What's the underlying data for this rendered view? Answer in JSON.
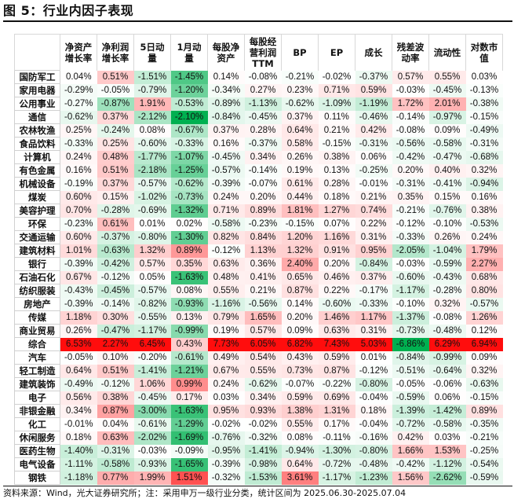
{
  "title": "图 5：行业内因子表现",
  "footer": "资料来源：Wind，光大证券研究所；注：采用申万一级行业分类，统计区间为 2025.06.30-2025.07.04",
  "chart_data": {
    "type": "heatmap",
    "colors": {
      "positive": "#ff0000",
      "negative": "#00b050",
      "neutral": "#ffffff"
    },
    "columns": [
      "净资产\n增长率",
      "净利润\n增长率",
      "5日动\n量",
      "1月动\n量",
      "每股净\n资产",
      "每股经\n营利润\nTTM",
      "BP",
      "EP",
      "成长",
      "残差波\n动率",
      "流动性",
      "对数市\n值"
    ],
    "unit": "%",
    "rows": [
      {
        "name": "国防军工",
        "values": [
          0.04,
          0.51,
          -1.51,
          -1.45,
          0.14,
          -0.08,
          -0.21,
          -0.02,
          -0.37,
          0.57,
          0.55,
          0.03
        ]
      },
      {
        "name": "家用电器",
        "values": [
          -0.29,
          -0.05,
          -0.79,
          -1.2,
          -0.34,
          0.27,
          0.23,
          0.71,
          0.59,
          -0.03,
          -0.45,
          -0.13
        ]
      },
      {
        "name": "公用事业",
        "values": [
          -0.27,
          -0.87,
          1.91,
          -0.53,
          -0.89,
          -1.13,
          -0.62,
          -1.09,
          -1.19,
          1.72,
          2.01,
          -0.38
        ]
      },
      {
        "name": "通信",
        "values": [
          -0.62,
          0.37,
          -2.12,
          -2.1,
          -0.84,
          -0.45,
          0.37,
          0.11,
          -0.46,
          -0.14,
          -0.97,
          -0.15
        ]
      },
      {
        "name": "农林牧渔",
        "values": [
          0.25,
          -0.24,
          0.08,
          -0.67,
          0.37,
          0.28,
          0.64,
          0.21,
          0.42,
          -0.08,
          0.09,
          -0.49
        ]
      },
      {
        "name": "食品饮料",
        "values": [
          -0.33,
          0.25,
          -0.6,
          -0.33,
          0.16,
          -0.37,
          0.58,
          -0.15,
          -0.31,
          -0.56,
          -0.58,
          -0.31
        ]
      },
      {
        "name": "计算机",
        "values": [
          0.24,
          0.48,
          -1.77,
          -1.07,
          -0.45,
          0.34,
          0.26,
          0.38,
          0.06,
          -0.42,
          -0.47,
          -0.68
        ]
      },
      {
        "name": "有色金属",
        "values": [
          0.16,
          0.51,
          -2.18,
          -1.25,
          -0.57,
          -0.14,
          0.19,
          0.13,
          -0.25,
          0.2,
          0.4,
          0.32
        ]
      },
      {
        "name": "机械设备",
        "values": [
          -0.19,
          0.37,
          -0.57,
          -0.62,
          -0.39,
          -0.07,
          0.61,
          0.28,
          -0.01,
          -0.31,
          -0.41,
          -0.94
        ]
      },
      {
        "name": "煤炭",
        "values": [
          0.6,
          0.15,
          -1.02,
          -0.73,
          0.24,
          0.2,
          0.44,
          0.18,
          0.21,
          0.35,
          0.15,
          0.16
        ]
      },
      {
        "name": "美容护理",
        "values": [
          0.7,
          -0.28,
          -0.69,
          -1.32,
          0.71,
          0.89,
          1.81,
          1.27,
          0.74,
          -0.21,
          -0.76,
          0.38
        ]
      },
      {
        "name": "环保",
        "values": [
          -0.23,
          0.61,
          0.01,
          0.02,
          -0.58,
          -0.23,
          -0.15,
          0.07,
          0.22,
          -0.12,
          -0.1,
          -0.53
        ]
      },
      {
        "name": "交通运输",
        "values": [
          0.6,
          -0.37,
          -0.8,
          -1.3,
          0.82,
          0.84,
          1.2,
          1.16,
          0.31,
          -0.33,
          0.26,
          0.24
        ]
      },
      {
        "name": "建筑材料",
        "values": [
          1.01,
          -0.63,
          1.32,
          0.89,
          -0.12,
          1.13,
          1.32,
          0.91,
          0.95,
          -2.05,
          -1.04,
          1.79
        ]
      },
      {
        "name": "银行",
        "values": [
          -0.39,
          -0.42,
          0.57,
          0.35,
          0.63,
          0.36,
          2.4,
          0.2,
          -0.84,
          -0.03,
          -0.59,
          2.27
        ]
      },
      {
        "name": "石油石化",
        "values": [
          0.67,
          -0.12,
          0.05,
          -1.63,
          0.48,
          0.41,
          0.65,
          0.46,
          0.37,
          -0.6,
          -0.43,
          0.68
        ]
      },
      {
        "name": "纺织服装",
        "values": [
          -0.43,
          -0.45,
          -0.57,
          0.08,
          0.55,
          0.21,
          0.87,
          0.22,
          -0.17,
          -1.17,
          -0.28,
          0.8
        ]
      },
      {
        "name": "房地产",
        "values": [
          -0.39,
          -0.14,
          -0.82,
          -0.93,
          -1.16,
          -0.56,
          0.14,
          -0.6,
          -0.33,
          -0.1,
          0.32,
          -0.57
        ]
      },
      {
        "name": "传媒",
        "values": [
          1.18,
          0.3,
          -0.55,
          0.13,
          0.79,
          1.65,
          0.2,
          1.46,
          1.17,
          -1.37,
          -0.08,
          1.26
        ]
      },
      {
        "name": "商业贸易",
        "values": [
          0.26,
          -0.47,
          -1.17,
          -0.99,
          0.19,
          0.57,
          0.09,
          0.63,
          0.31,
          -0.73,
          -0.48,
          0.12
        ]
      },
      {
        "name": "综合",
        "values": [
          6.53,
          2.27,
          6.45,
          0.43,
          7.73,
          6.05,
          6.82,
          7.43,
          5.03,
          -6.86,
          6.29,
          6.94
        ]
      },
      {
        "name": "汽车",
        "values": [
          -0.05,
          0.1,
          -0.2,
          -0.61,
          0.49,
          0.54,
          0.43,
          0.59,
          0.01,
          -0.84,
          -0.99,
          0.09
        ]
      },
      {
        "name": "轻工制造",
        "values": [
          0.64,
          0.51,
          -1.41,
          -1.21,
          0.67,
          0.55,
          0.73,
          0.87,
          -0.12,
          -0.51,
          -0.64,
          0.32
        ]
      },
      {
        "name": "建筑装饰",
        "values": [
          -0.49,
          -0.12,
          1.06,
          0.99,
          0.24,
          -0.62,
          -0.07,
          -0.22,
          -0.8,
          -0.05,
          -0.06,
          -0.63
        ]
      },
      {
        "name": "电子",
        "values": [
          0.56,
          0.38,
          -0.45,
          0.17,
          0.03,
          0.34,
          0.59,
          0.69,
          -0.04,
          -0.59,
          0.06,
          -0.15
        ]
      },
      {
        "name": "非银金融",
        "values": [
          0.34,
          0.87,
          -3.0,
          -1.63,
          0.95,
          0.93,
          1.38,
          1.31,
          0.18,
          -1.39,
          -1.42,
          0.89
        ]
      },
      {
        "name": "化工",
        "values": [
          -0.01,
          0.04,
          -0.61,
          -1.29,
          -0.02,
          -0.02,
          0.55,
          0.17,
          -0.04,
          -0.72,
          -0.58,
          -0.35
        ]
      },
      {
        "name": "休闲服务",
        "values": [
          0.18,
          0.63,
          -2.02,
          -1.69,
          -0.76,
          -0.32,
          0.08,
          -0.11,
          -0.16,
          0.42,
          0.03,
          -0.21
        ]
      },
      {
        "name": "医药生物",
        "values": [
          -1.4,
          -0.31,
          -0.03,
          -0.09,
          -0.95,
          -1.41,
          -0.94,
          -1.3,
          -0.8,
          1.66,
          1.53,
          -0.25
        ]
      },
      {
        "name": "电气设备",
        "values": [
          -1.11,
          -0.58,
          -0.93,
          -1.65,
          -0.39,
          -0.98,
          0.64,
          -0.72,
          -0.48,
          -0.42,
          -1.12,
          -0.54
        ]
      },
      {
        "name": "钢铁",
        "values": [
          -1.18,
          0.77,
          1.99,
          1.51,
          -0.32,
          -1.53,
          3.61,
          -1.17,
          -1.23,
          1.56,
          -2.62,
          -0.59
        ]
      }
    ]
  }
}
